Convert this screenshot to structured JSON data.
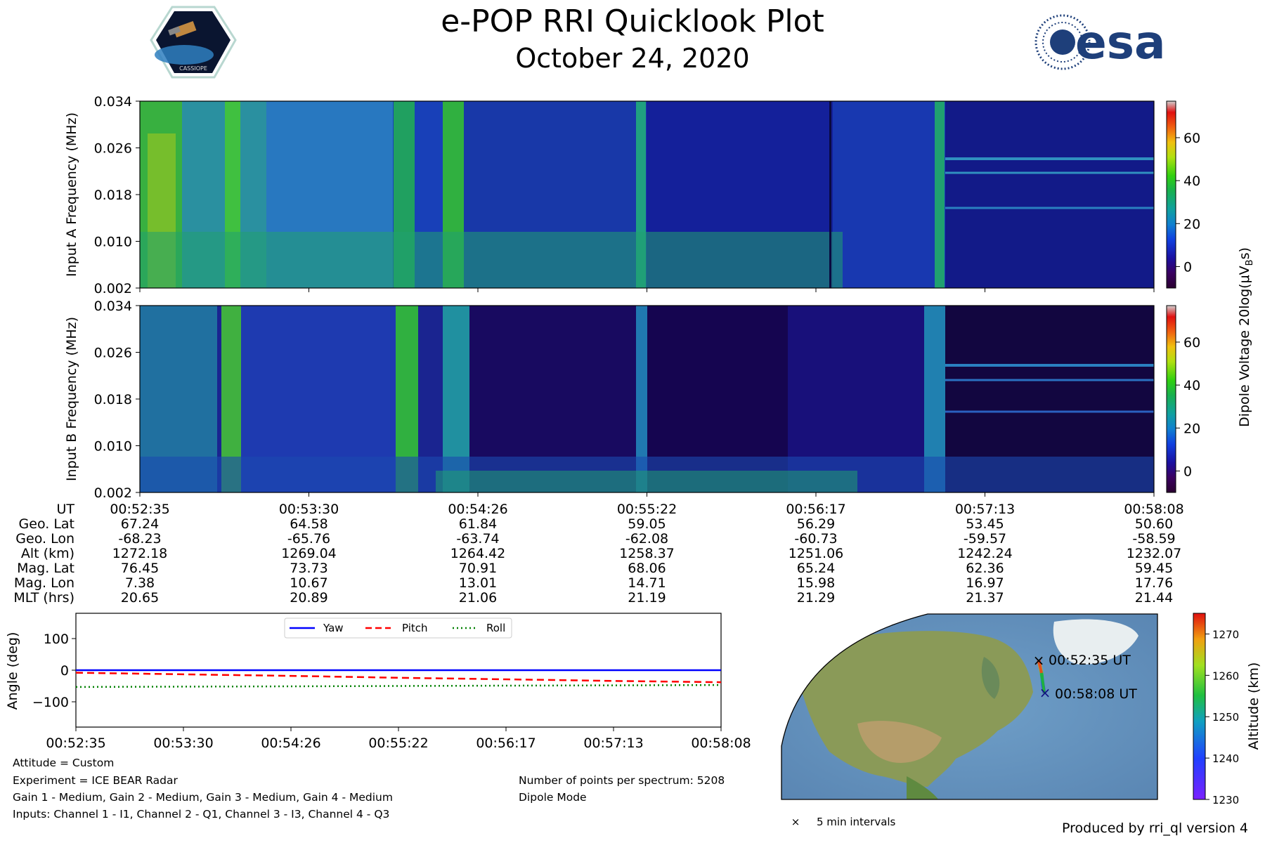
{
  "header": {
    "title": "e-POP RRI Quicklook Plot",
    "subtitle": "October 24, 2020",
    "mission_logo_text": "CASSIOPE",
    "agency_logo_text": "esa"
  },
  "chart_data": [
    {
      "type": "heatmap",
      "name": "input-a-spectrogram",
      "title": "",
      "ylabel": "Input A Frequency (MHz)",
      "yticks": [
        "0.002",
        "0.010",
        "0.018",
        "0.026",
        "0.034"
      ],
      "ylim": [
        0.002,
        0.034
      ]
    },
    {
      "type": "heatmap",
      "name": "input-b-spectrogram",
      "title": "",
      "ylabel": "Input B Frequency (MHz)",
      "yticks": [
        "0.002",
        "0.010",
        "0.018",
        "0.026",
        "0.034"
      ],
      "ylim": [
        0.002,
        0.034
      ]
    },
    {
      "type": "line",
      "name": "attitude",
      "ylabel": "Angle (deg)",
      "ylim": [
        -180,
        180
      ],
      "yticks": [
        "100",
        "0",
        "−100"
      ],
      "ytick_values": [
        100,
        0,
        -100
      ],
      "xticks": [
        "00:52:35",
        "00:53:30",
        "00:54:26",
        "00:55:22",
        "00:56:17",
        "00:57:13",
        "00:58:08"
      ],
      "series": [
        {
          "name": "Yaw",
          "color": "#0000ff",
          "style": "solid",
          "values": [
            0,
            0,
            0,
            0,
            0,
            0,
            0
          ]
        },
        {
          "name": "Pitch",
          "color": "#ff0000",
          "style": "dashed",
          "values": [
            -8,
            -13,
            -18,
            -24,
            -29,
            -34,
            -38
          ]
        },
        {
          "name": "Roll",
          "color": "#008000",
          "style": "dotted",
          "values": [
            -53,
            -52,
            -51,
            -50,
            -49,
            -48,
            -47
          ]
        }
      ],
      "legend_position": "top-center"
    },
    {
      "type": "scatter",
      "name": "ground-track-map",
      "annotations": [
        "00:52:35 UT",
        "00:58:08 UT"
      ],
      "legend": "5 min intervals",
      "colorbar": {
        "label": "Altitude (km)",
        "ticks": [
          "1230",
          "1240",
          "1250",
          "1260",
          "1270"
        ],
        "range": [
          1230,
          1275
        ]
      }
    }
  ],
  "colorbar_spectrogram": {
    "label": "Dipole Voltage 20log(μV",
    "label_sub": "B",
    "label_end": "s)",
    "ticks": [
      "0",
      "20",
      "40",
      "60"
    ],
    "tick_values": [
      0,
      20,
      40,
      60
    ],
    "range": [
      -10,
      77
    ]
  },
  "ephemeris": {
    "row_labels": [
      "UT",
      "Geo. Lat",
      "Geo. Lon",
      "Alt (km)",
      "Mag. Lat",
      "Mag. Lon",
      "MLT (hrs)"
    ],
    "columns": [
      [
        "00:52:35",
        "67.24",
        "-68.23",
        "1272.18",
        "76.45",
        "7.38",
        "20.65"
      ],
      [
        "00:53:30",
        "64.58",
        "-65.76",
        "1269.04",
        "73.73",
        "10.67",
        "20.89"
      ],
      [
        "00:54:26",
        "61.84",
        "-63.74",
        "1264.42",
        "70.91",
        "13.01",
        "21.06"
      ],
      [
        "00:55:22",
        "59.05",
        "-62.08",
        "1258.37",
        "68.06",
        "14.71",
        "21.19"
      ],
      [
        "00:56:17",
        "56.29",
        "-60.73",
        "1251.06",
        "65.24",
        "15.98",
        "21.29"
      ],
      [
        "00:57:13",
        "53.45",
        "-59.57",
        "1242.24",
        "62.36",
        "16.97",
        "21.37"
      ],
      [
        "00:58:08",
        "50.60",
        "-58.59",
        "1232.07",
        "59.45",
        "17.76",
        "21.44"
      ]
    ]
  },
  "info": {
    "attitude": "Attitude = Custom",
    "experiment": "Experiment = ICE BEAR Radar",
    "gains": "Gain 1 - Medium, Gain 2 - Medium, Gain 3 - Medium, Gain 4 - Medium",
    "inputs": "Inputs: Channel 1 - I1, Channel 2 - Q1, Channel 3 - I3, Channel 4 - Q3",
    "points": "Number of points per spectrum: 5208",
    "mode": "Dipole Mode",
    "produced_by": "Produced by rri_ql version 4"
  }
}
